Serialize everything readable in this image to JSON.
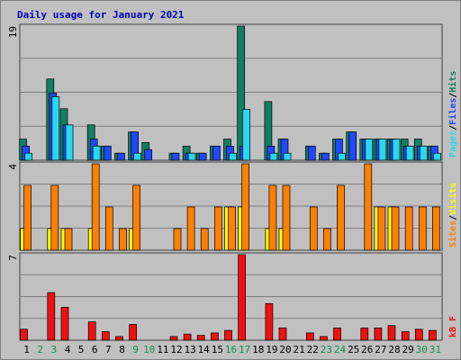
{
  "colors": {
    "background": "#c0c0c0",
    "panel_border": "#404040",
    "gridline": "#808080",
    "title": "#0000c0",
    "hits": "#108060",
    "files": "#1f48ff",
    "pages": "#28d8f0",
    "visits": "#ffff00",
    "sites": "#ff8000",
    "kbytes": "#f01010",
    "weekend_label": "#109050",
    "weekday_label": "#000000",
    "legend_slash": "#000000"
  },
  "title": "Daily usage for January 2021",
  "legends": {
    "top": [
      "Pages",
      "/",
      "Files",
      "/",
      "Hits"
    ],
    "middle": [
      "Sites",
      "/",
      "Visits"
    ],
    "bottom": [
      "kB F"
    ]
  },
  "chart_data": [
    {
      "type": "bar",
      "panel": "hits-files-pages",
      "categories": [
        "1",
        "2",
        "3",
        "4",
        "5",
        "6",
        "7",
        "8",
        "9",
        "10",
        "11",
        "12",
        "13",
        "14",
        "15",
        "16",
        "17",
        "18",
        "19",
        "20",
        "21",
        "22",
        "23",
        "24",
        "25",
        "26",
        "27",
        "28",
        "29",
        "30",
        "31"
      ],
      "weekend_days": [
        "2",
        "3",
        "9",
        "10",
        "16",
        "17",
        "23",
        "24",
        "30",
        "31"
      ],
      "ymax_label": "19",
      "ylim": [
        0,
        19
      ],
      "series": [
        {
          "name": "Hits",
          "values": [
            3,
            0,
            11.5,
            7.3,
            0,
            5,
            2,
            1,
            4,
            2.5,
            0,
            1,
            2,
            1,
            2,
            3,
            19,
            0,
            8.3,
            3,
            0,
            2,
            1,
            3,
            4,
            3,
            3,
            3,
            3,
            3,
            2
          ]
        },
        {
          "name": "Files",
          "values": [
            2,
            0,
            9.5,
            5,
            0,
            3,
            2,
            1,
            4,
            1.5,
            0,
            1,
            1,
            1,
            2,
            2,
            2,
            0,
            2,
            3,
            0,
            2,
            1,
            3,
            4,
            3,
            3,
            3,
            2,
            2,
            2
          ]
        },
        {
          "name": "Pages",
          "values": [
            1,
            0,
            9,
            5,
            0,
            2,
            0,
            0,
            1,
            0,
            0,
            0,
            1,
            0,
            0,
            1,
            7.2,
            0,
            1,
            1,
            0,
            0,
            0,
            1,
            0,
            3,
            3,
            3,
            2,
            2,
            1
          ]
        }
      ]
    },
    {
      "type": "bar",
      "panel": "sites-visits",
      "categories": [
        "1",
        "2",
        "3",
        "4",
        "5",
        "6",
        "7",
        "8",
        "9",
        "10",
        "11",
        "12",
        "13",
        "14",
        "15",
        "16",
        "17",
        "18",
        "19",
        "20",
        "21",
        "22",
        "23",
        "24",
        "25",
        "26",
        "27",
        "28",
        "29",
        "30",
        "31"
      ],
      "ymax_label": "4",
      "ylim": [
        0,
        4
      ],
      "series": [
        {
          "name": "Visits",
          "values": [
            1,
            0,
            1,
            1,
            0,
            1,
            0,
            0,
            1,
            0,
            0,
            0,
            0,
            0,
            0,
            2,
            2,
            0,
            1,
            1,
            0,
            0,
            0,
            0,
            0,
            0,
            2,
            2,
            0,
            0,
            0
          ]
        },
        {
          "name": "Sites",
          "values": [
            3,
            0,
            3,
            1,
            0,
            4,
            2,
            1,
            3,
            0,
            0,
            1,
            2,
            1,
            2,
            2,
            4,
            0,
            3,
            3,
            0,
            2,
            1,
            3,
            0,
            4,
            2,
            2,
            2,
            2,
            2
          ]
        }
      ]
    },
    {
      "type": "bar",
      "panel": "kbytes",
      "categories": [
        "1",
        "2",
        "3",
        "4",
        "5",
        "6",
        "7",
        "8",
        "9",
        "10",
        "11",
        "12",
        "13",
        "14",
        "15",
        "16",
        "17",
        "18",
        "19",
        "20",
        "21",
        "22",
        "23",
        "24",
        "25",
        "26",
        "27",
        "28",
        "29",
        "30",
        "31"
      ],
      "ymax_label": "7",
      "ylim": [
        0,
        7
      ],
      "series": [
        {
          "name": "kB F",
          "values": [
            0.9,
            0,
            3.9,
            2.7,
            0,
            1.5,
            0.7,
            0.3,
            1.3,
            0,
            0,
            0.3,
            0.5,
            0.4,
            0.6,
            0.8,
            7,
            0,
            3,
            1,
            0,
            0.6,
            0.3,
            1,
            0,
            1,
            1,
            1.2,
            0.7,
            0.9,
            0.8
          ]
        }
      ]
    }
  ]
}
